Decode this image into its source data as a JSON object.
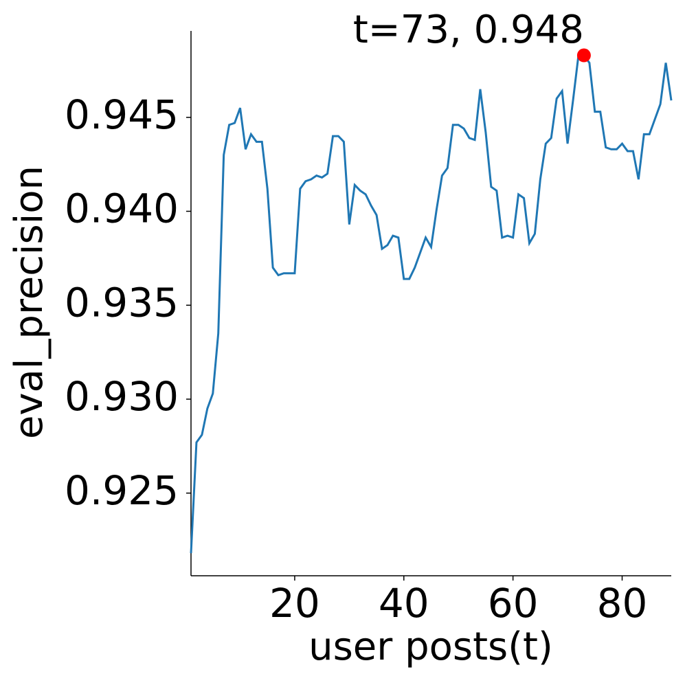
{
  "chart_data": {
    "type": "line",
    "x_label": "user posts(t)",
    "y_label": "eval_precision",
    "x": [
      1,
      2,
      3,
      4,
      5,
      6,
      7,
      8,
      9,
      10,
      11,
      12,
      13,
      14,
      15,
      16,
      17,
      18,
      19,
      20,
      21,
      22,
      23,
      24,
      25,
      26,
      27,
      28,
      29,
      30,
      31,
      32,
      33,
      34,
      35,
      36,
      37,
      38,
      39,
      40,
      41,
      42,
      43,
      44,
      45,
      46,
      47,
      48,
      49,
      50,
      51,
      52,
      53,
      54,
      55,
      56,
      57,
      58,
      59,
      60,
      61,
      62,
      63,
      64,
      65,
      66,
      67,
      68,
      69,
      70,
      71,
      72,
      73,
      74,
      75,
      76,
      77,
      78,
      79,
      80,
      81,
      82,
      83,
      84,
      85,
      86,
      87,
      88,
      89
    ],
    "series": [
      {
        "color": "#1f77b4",
        "values": [
          0.9218,
          0.9277,
          0.9281,
          0.9295,
          0.9303,
          0.9335,
          0.943,
          0.9446,
          0.9447,
          0.9455,
          0.9433,
          0.9441,
          0.9437,
          0.9437,
          0.9412,
          0.937,
          0.9366,
          0.9367,
          0.9367,
          0.9367,
          0.9412,
          0.9416,
          0.9417,
          0.9419,
          0.9418,
          0.942,
          0.944,
          0.944,
          0.9437,
          0.9393,
          0.9414,
          0.9411,
          0.9409,
          0.9403,
          0.9398,
          0.938,
          0.9382,
          0.9387,
          0.9386,
          0.9364,
          0.9364,
          0.937,
          0.9378,
          0.9386,
          0.9381,
          0.9401,
          0.9419,
          0.9423,
          0.9446,
          0.9446,
          0.9444,
          0.9439,
          0.9438,
          0.9465,
          0.9442,
          0.9413,
          0.9411,
          0.9386,
          0.9387,
          0.9386,
          0.9409,
          0.9407,
          0.9383,
          0.9388,
          0.9417,
          0.9436,
          0.9439,
          0.946,
          0.9464,
          0.9436,
          0.9459,
          0.9483,
          0.9483,
          0.9479,
          0.9453,
          0.9453,
          0.9434,
          0.9433,
          0.9433,
          0.9436,
          0.9432,
          0.9432,
          0.9417,
          0.9441,
          0.9441,
          0.9449,
          0.9457,
          0.9479,
          0.9459
        ]
      }
    ],
    "highlight": {
      "x": 73,
      "y": 0.9483,
      "label": "t=73, 0.948",
      "color": "#ff0000"
    },
    "xlim": [
      1,
      89
    ],
    "ylim": [
      0.9206,
      0.9496
    ],
    "xticks": [
      20,
      40,
      60,
      80
    ],
    "yticks": [
      0.925,
      {
        "value": 0.93,
        "label": "0.930"
      },
      0.935,
      {
        "value": 0.94,
        "label": "0.940"
      },
      0.945
    ]
  }
}
